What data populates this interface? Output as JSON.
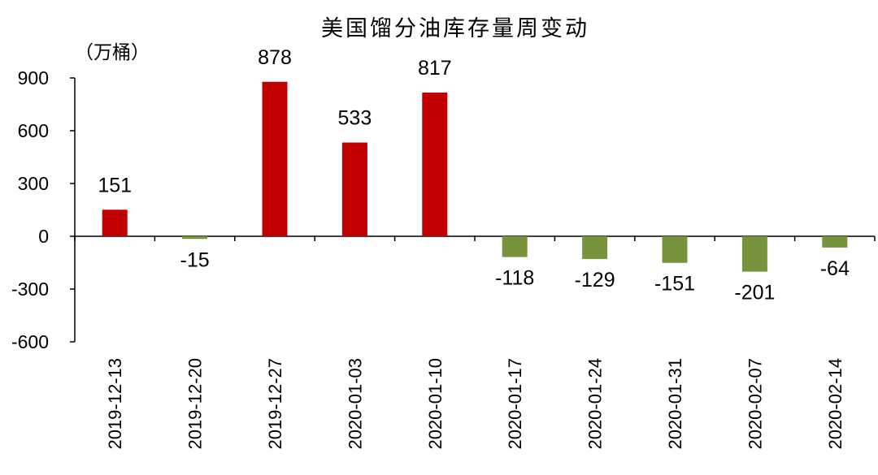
{
  "chart_data": {
    "type": "bar",
    "title": "美国馏分油库存量周变动",
    "ylabel": "（万桶）",
    "xlabel": "",
    "ylim": [
      -600,
      900
    ],
    "yticks": [
      900,
      600,
      300,
      0,
      -300,
      -600
    ],
    "categories": [
      "2019-12-13",
      "2019-12-20",
      "2019-12-27",
      "2020-01-03",
      "2020-01-10",
      "2020-01-17",
      "2020-01-24",
      "2020-01-31",
      "2020-02-07",
      "2020-02-14"
    ],
    "values": [
      151,
      -15,
      878,
      533,
      817,
      -118,
      -129,
      -151,
      -201,
      -64
    ],
    "data_labels": [
      "151",
      "-15",
      "878",
      "533",
      "817",
      "-118",
      "-129",
      "-151",
      "-201",
      "-64"
    ],
    "grid": false,
    "legend": "none",
    "colors": {
      "positive": "#C00000",
      "negative": "#77933C",
      "axis": "#000000"
    }
  }
}
